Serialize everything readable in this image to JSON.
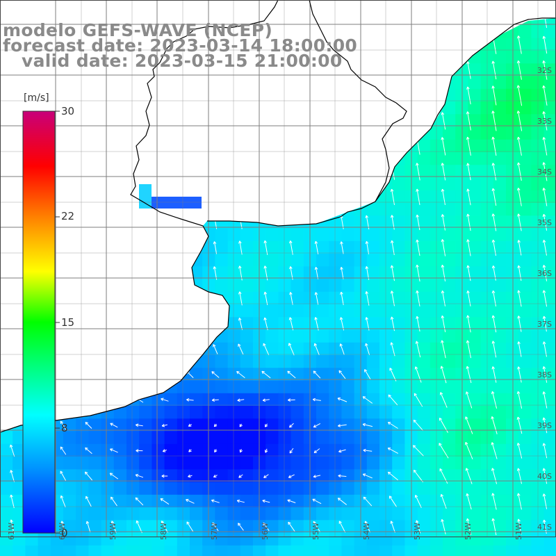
{
  "title": {
    "line1": "modelo GEFS-WAVE (NCEP)",
    "line2": "forecast date: 2023-03-14 18:00:00",
    "line3": "   valid date: 2023-03-15 21:00:00"
  },
  "colorbar": {
    "unit": "[m/s]",
    "ticks": [
      "30",
      "22",
      "15",
      "8",
      "0"
    ],
    "colors": [
      "#0000ff",
      "#00b0ff",
      "#00ffff",
      "#00ff00",
      "#ffff00",
      "#ff8000",
      "#ff0000",
      "#c8007a"
    ]
  },
  "map": {
    "lat_labels": [
      "32S",
      "33S",
      "34S",
      "35S",
      "36S",
      "37S",
      "38S",
      "39S",
      "40S",
      "41S"
    ],
    "lon_labels": [
      "61W",
      "60W",
      "59W",
      "58W",
      "57W",
      "56W",
      "55W",
      "54W",
      "53W",
      "52W",
      "51W"
    ],
    "land_color": "#ffffff",
    "grid_color": "#888888",
    "coast_color": "#000000",
    "arrow_color": "#ffffff"
  }
}
